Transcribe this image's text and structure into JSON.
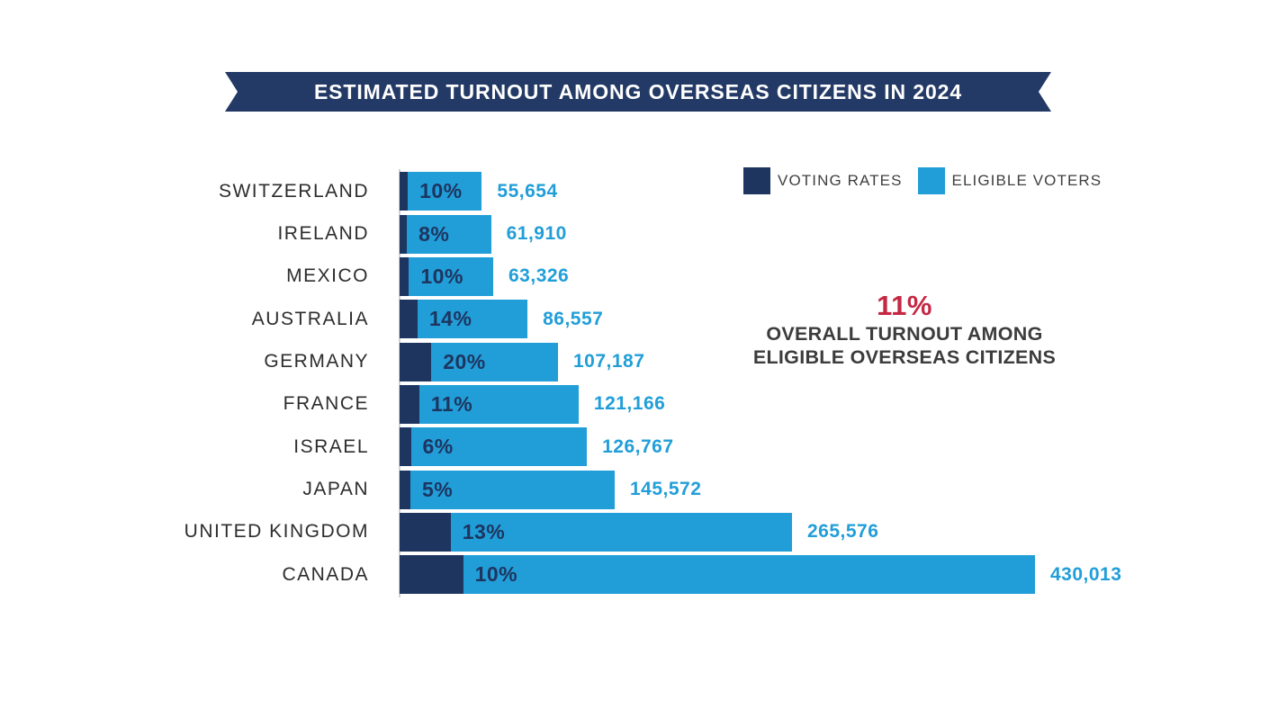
{
  "banner": {
    "title": "ESTIMATED TURNOUT AMONG OVERSEAS CITIZENS IN 2024"
  },
  "legend": [
    {
      "label": "VOTING RATES",
      "color": "#1E3560"
    },
    {
      "label": "ELIGIBLE VOTERS",
      "color": "#219ED8"
    }
  ],
  "annotation": {
    "value": "11%",
    "value_color": "#C42843",
    "lines": [
      "OVERALL TURNOUT AMONG",
      "ELIGIBLE OVERSEAS CITIZENS"
    ]
  },
  "chart_data": {
    "type": "bar",
    "orientation": "horizontal",
    "title": "ESTIMATED TURNOUT AMONG OVERSEAS CITIZENS IN 2024",
    "categories": [
      "SWITZERLAND",
      "IRELAND",
      "MEXICO",
      "AUSTRALIA",
      "GERMANY",
      "FRANCE",
      "ISRAEL",
      "JAPAN",
      "UNITED KINGDOM",
      "CANADA"
    ],
    "series": [
      {
        "name": "VOTING RATES",
        "color": "#1E3560",
        "unit": "percent",
        "values": [
          10,
          8,
          10,
          14,
          20,
          11,
          6,
          5,
          13,
          10
        ]
      },
      {
        "name": "ELIGIBLE VOTERS",
        "color": "#219ED8",
        "unit": "people",
        "values": [
          55654,
          61910,
          63326,
          86557,
          107187,
          121166,
          126767,
          145572,
          265576,
          430013
        ]
      }
    ],
    "rows": [
      {
        "country": "SWITZERLAND",
        "rate": 10,
        "rate_label": "10%",
        "eligible": 55654,
        "eligible_label": "55,654"
      },
      {
        "country": "IRELAND",
        "rate": 8,
        "rate_label": "8%",
        "eligible": 61910,
        "eligible_label": "61,910"
      },
      {
        "country": "MEXICO",
        "rate": 10,
        "rate_label": "10%",
        "eligible": 63326,
        "eligible_label": "63,326"
      },
      {
        "country": "AUSTRALIA",
        "rate": 14,
        "rate_label": "14%",
        "eligible": 86557,
        "eligible_label": "86,557"
      },
      {
        "country": "GERMANY",
        "rate": 20,
        "rate_label": "20%",
        "eligible": 107187,
        "eligible_label": "107,187"
      },
      {
        "country": "FRANCE",
        "rate": 11,
        "rate_label": "11%",
        "eligible": 121166,
        "eligible_label": "121,166"
      },
      {
        "country": "ISRAEL",
        "rate": 6,
        "rate_label": "6%",
        "eligible": 126767,
        "eligible_label": "126,767"
      },
      {
        "country": "JAPAN",
        "rate": 5,
        "rate_label": "5%",
        "eligible": 145572,
        "eligible_label": "145,572"
      },
      {
        "country": "UNITED KINGDOM",
        "rate": 13,
        "rate_label": "13%",
        "eligible": 265576,
        "eligible_label": "265,576"
      },
      {
        "country": "CANADA",
        "rate": 10,
        "rate_label": "10%",
        "eligible": 430013,
        "eligible_label": "430,013"
      }
    ],
    "xmax": 430013,
    "grid": false,
    "legend_position": "top-right",
    "note": "Dark segment width encodes voting rate x eligible voters (estimated voters) on the same scale as the blue eligible-voters bar."
  }
}
